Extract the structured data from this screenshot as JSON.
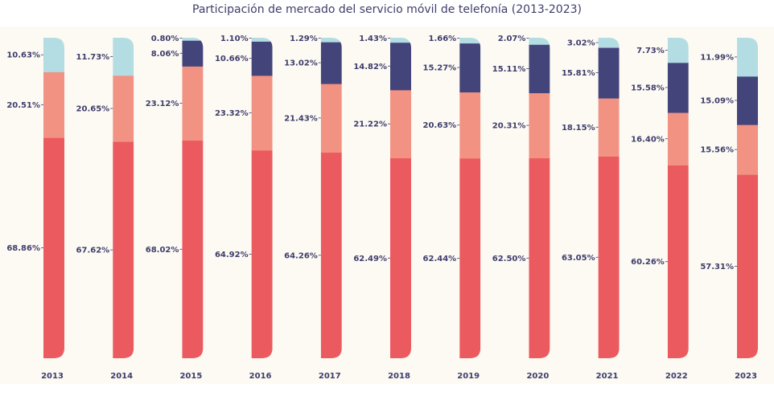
{
  "chart_data": {
    "type": "bar",
    "stacked": true,
    "title": "Participación de mercado del servicio móvil de telefonía (2013-2023)",
    "xlabel": "",
    "ylabel": "",
    "ylim": [
      0,
      100
    ],
    "grid": false,
    "legend": "none",
    "categories": [
      "2013",
      "2014",
      "2015",
      "2016",
      "2017",
      "2018",
      "2019",
      "2020",
      "2021",
      "2022",
      "2023"
    ],
    "series": [
      {
        "color": "#eb5a5f",
        "values": [
          68.86,
          67.62,
          68.02,
          64.92,
          64.26,
          62.49,
          62.44,
          62.5,
          63.05,
          60.26,
          57.31
        ]
      },
      {
        "color": "#f29283",
        "values": [
          20.51,
          20.65,
          23.12,
          23.32,
          21.43,
          21.22,
          20.63,
          20.31,
          18.15,
          16.4,
          15.56
        ]
      },
      {
        "color": "#43447a",
        "values": [
          null,
          null,
          8.06,
          10.66,
          13.02,
          14.82,
          15.27,
          15.11,
          15.81,
          15.58,
          15.09
        ]
      },
      {
        "color": "#b3dde3",
        "values": [
          10.63,
          11.73,
          0.8,
          1.1,
          1.29,
          1.43,
          1.66,
          2.07,
          3.02,
          7.73,
          11.99
        ]
      }
    ],
    "labels": [
      [
        "68.86%",
        "67.62%",
        "68.02%",
        "64.92%",
        "64.26%",
        "62.49%",
        "62.44%",
        "62.50%",
        "63.05%",
        "60.26%",
        "57.31%"
      ],
      [
        "20.51%",
        "20.65%",
        "23.12%",
        "23.32%",
        "21.43%",
        "21.22%",
        "20.63%",
        "20.31%",
        "18.15%",
        "16.40%",
        "15.56%"
      ],
      [
        "",
        "",
        "8.06%",
        "10.66%",
        "13.02%",
        "14.82%",
        "15.27%",
        "15.11%",
        "15.81%",
        "15.58%",
        "15.09%"
      ],
      [
        "10.63%",
        "11.73%",
        "0.80%",
        "1.10%",
        "1.29%",
        "1.43%",
        "1.66%",
        "2.07%",
        "3.02%",
        "7.73%",
        "11.99%"
      ]
    ],
    "plot_background": "#fcfaf3"
  }
}
